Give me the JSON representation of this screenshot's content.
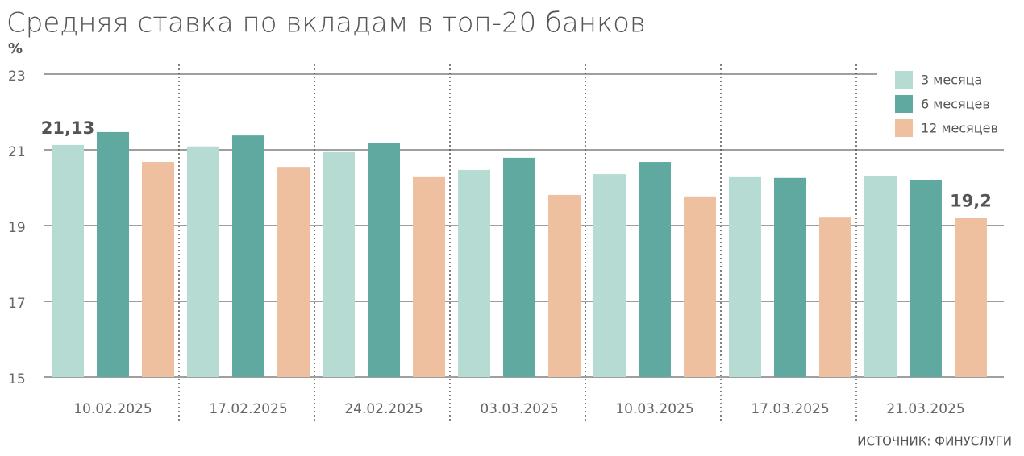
{
  "chart_data": {
    "type": "bar",
    "title": "Средняя ставка по вкладам в топ-20 банков",
    "y_unit": "%",
    "source": "ИСТОЧНИК: ФИНУСЛУГИ",
    "categories": [
      "10.02.2025",
      "17.02.2025",
      "24.02.2025",
      "03.03.2025",
      "10.03.2025",
      "17.03.2025",
      "21.03.2025"
    ],
    "series": [
      {
        "name": "3 месяца",
        "color": "#b6dbd3",
        "values": [
          21.13,
          21.09,
          20.94,
          20.47,
          20.36,
          20.28,
          20.3
        ],
        "value_labels": [
          "21,13",
          null,
          null,
          null,
          null,
          null,
          null
        ]
      },
      {
        "name": "6 месяцев",
        "color": "#60a9a1",
        "values": [
          21.47,
          21.38,
          21.19,
          20.79,
          20.68,
          20.26,
          20.21
        ],
        "value_labels": [
          null,
          null,
          null,
          null,
          null,
          null,
          null
        ]
      },
      {
        "name": "12 месяцев",
        "color": "#eec0a0",
        "values": [
          20.68,
          20.55,
          20.28,
          19.81,
          19.77,
          19.23,
          19.2
        ],
        "value_labels": [
          null,
          null,
          null,
          null,
          null,
          null,
          "19,2"
        ]
      }
    ],
    "ylim": [
      15,
      23
    ],
    "yticks": [
      15,
      17,
      19,
      21,
      23
    ],
    "grid": true,
    "legend": "top-right"
  }
}
